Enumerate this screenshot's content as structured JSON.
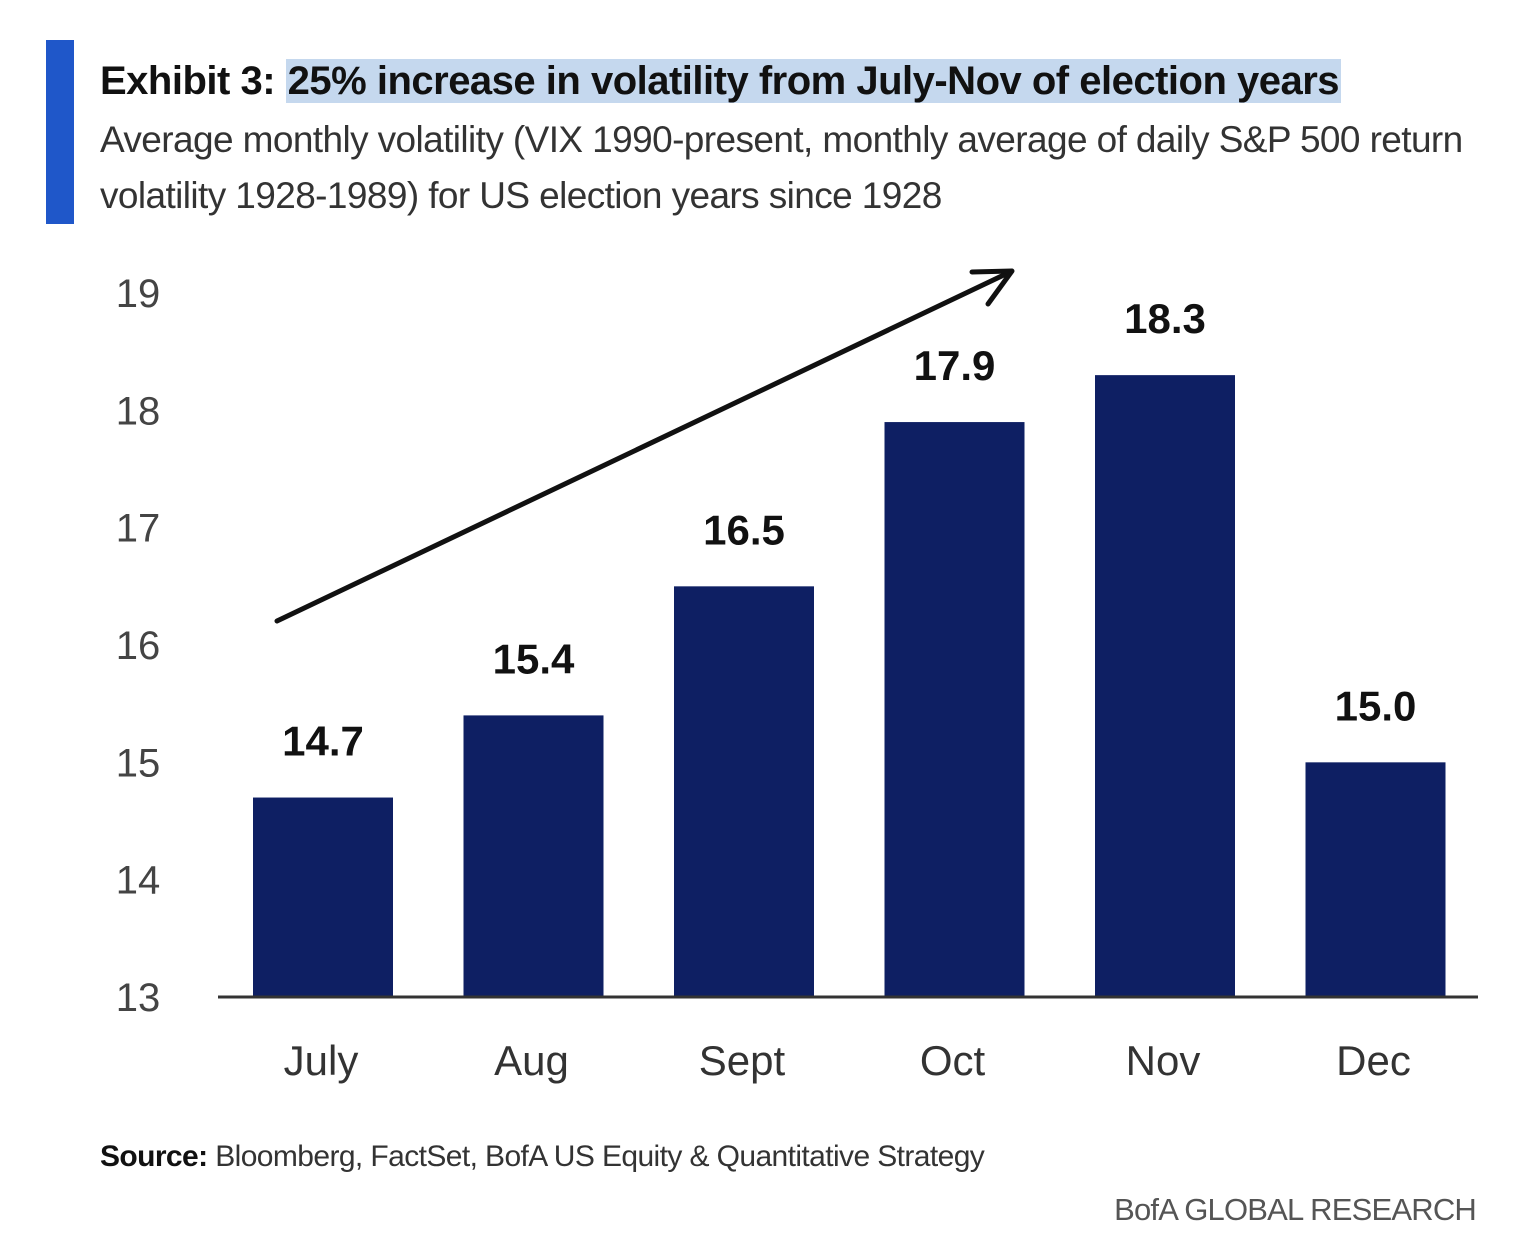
{
  "header": {
    "exhibit_label": "Exhibit 3:",
    "title_highlighted": "25% increase in volatility from July-Nov of election years",
    "subtitle": "Average monthly volatility (VIX 1990-present, monthly average of daily S&P 500 return volatility 1928-1989) for US election years since 1928"
  },
  "footer": {
    "source_label": "Source:",
    "source_text": "Bloomberg, FactSet, BofA US Equity & Quantitative Strategy",
    "brand": "BofA GLOBAL RESEARCH"
  },
  "colors": {
    "accent": "#1f57c9",
    "bar": "#0e1f63",
    "highlight": "#c5d8ee",
    "axis": "#333333",
    "arrow": "#111111"
  },
  "chart_data": {
    "type": "bar",
    "categories": [
      "July",
      "Aug",
      "Sept",
      "Oct",
      "Nov",
      "Dec"
    ],
    "values": [
      14.7,
      15.4,
      16.5,
      17.9,
      18.3,
      15.0
    ],
    "data_labels": [
      "14.7",
      "15.4",
      "16.5",
      "17.9",
      "18.3",
      "15.0"
    ],
    "ylim": [
      13,
      19
    ],
    "yticks": [
      13,
      14,
      15,
      16,
      17,
      18,
      19
    ],
    "grid": false,
    "legend": "none",
    "annotation": "upward-trend-arrow"
  }
}
